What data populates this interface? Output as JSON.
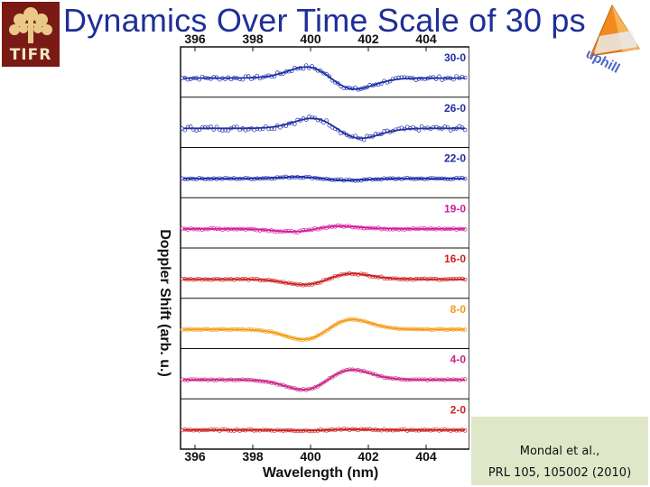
{
  "slide": {
    "title": "Dynamics Over Time Scale of 30 ps",
    "logo_left_text": "TIFR",
    "logo_right_text": "uphill",
    "citation_line1": "Mondal et al.,",
    "citation_line2": "PRL 105, 105002 (2010)"
  },
  "chart_data": {
    "type": "line",
    "title": "",
    "xlabel": "Wavelength (nm)",
    "ylabel": "Doppler Shift (arb. u.)",
    "xlim": [
      395.5,
      405.5
    ],
    "x_ticks": [
      396,
      398,
      400,
      402,
      404
    ],
    "series": [
      {
        "name": "30-0",
        "color": "#1c2fa8",
        "amp": 1.0,
        "center": 400.7,
        "noise": 0.16
      },
      {
        "name": "26-0",
        "color": "#2530a3",
        "amp": 0.9,
        "center": 400.9,
        "noise": 0.2
      },
      {
        "name": "22-0",
        "color": "#1a2aa8",
        "amp": 0.15,
        "center": 400.4,
        "noise": 0.07
      },
      {
        "name": "19-0",
        "color": "#d21c9c",
        "amp": -0.25,
        "center": 400.2,
        "noise": 0.07
      },
      {
        "name": "16-0",
        "color": "#cc1f1f",
        "amp": -0.5,
        "center": 400.6,
        "noise": 0.06
      },
      {
        "name": "8-0",
        "color": "#f39a12",
        "amp": -0.9,
        "center": 400.6,
        "noise": 0.04
      },
      {
        "name": "4-0",
        "color": "#cc2288",
        "amp": -0.9,
        "center": 400.6,
        "noise": 0.05
      },
      {
        "name": "2-0",
        "color": "#cc1f1f",
        "amp": -0.05,
        "center": 400.6,
        "noise": 0.06
      }
    ]
  }
}
